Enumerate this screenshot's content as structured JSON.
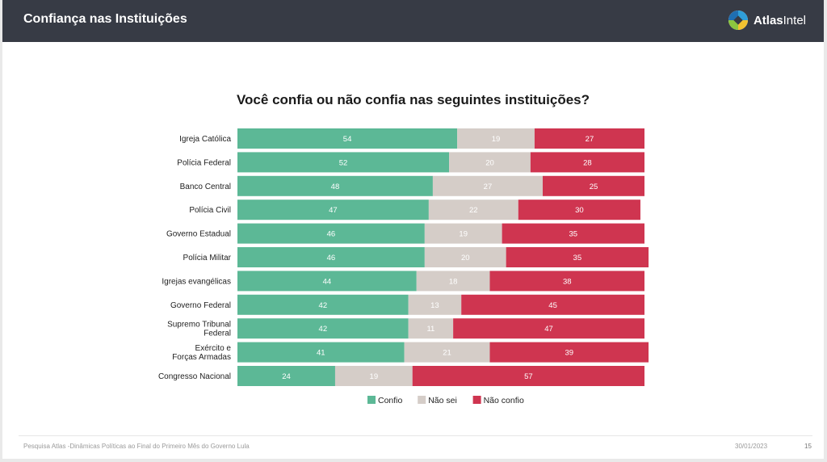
{
  "header": {
    "title": "Confiança nas Instituições",
    "logo_text_bold": "Atlas",
    "logo_text_regular": "Intel",
    "logo_icon": "atlasintel-logo-icon"
  },
  "footer": {
    "source": "Pesquisa Atlas -Dinâmicas Políticas ao Final do Primeiro Mês do Governo Lula",
    "date": "30/01/2023",
    "page_number": "15"
  },
  "chart_data": {
    "type": "bar",
    "orientation": "horizontal",
    "stacked": true,
    "title": "Você confia ou não confia nas seguintes instituições?",
    "xlabel": "",
    "ylabel": "",
    "xlim": [
      0,
      100
    ],
    "grid": false,
    "legend_position": "bottom-center",
    "categories": [
      "Igreja Católica",
      "Polícia Federal",
      "Banco Central",
      "Polícia Civil",
      "Governo Estadual",
      "Polícia Militar",
      "Igrejas evangélicas",
      "Governo Federal",
      "Supremo Tribunal Federal",
      "Exército e Forças Armadas",
      "Congresso Nacional"
    ],
    "series": [
      {
        "name": "Confio",
        "color": "#5cb896",
        "values": [
          54,
          52,
          48,
          47,
          46,
          46,
          44,
          42,
          42,
          41,
          24
        ]
      },
      {
        "name": "Não sei",
        "color": "#d5cdc8",
        "values": [
          19,
          20,
          27,
          22,
          19,
          20,
          18,
          13,
          11,
          21,
          19
        ]
      },
      {
        "name": "Não confio",
        "color": "#cf3550",
        "values": [
          27,
          28,
          25,
          30,
          35,
          35,
          38,
          45,
          47,
          39,
          57
        ]
      }
    ]
  }
}
